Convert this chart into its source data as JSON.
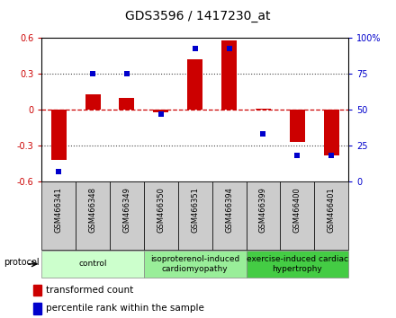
{
  "title": "GDS3596 / 1417230_at",
  "samples": [
    "GSM466341",
    "GSM466348",
    "GSM466349",
    "GSM466350",
    "GSM466351",
    "GSM466394",
    "GSM466399",
    "GSM466400",
    "GSM466401"
  ],
  "bar_values": [
    -0.42,
    0.13,
    0.1,
    -0.02,
    0.42,
    0.58,
    0.01,
    -0.27,
    -0.38
  ],
  "scatter_values": [
    7,
    75,
    75,
    47,
    93,
    93,
    33,
    18,
    18
  ],
  "ylim_left": [
    -0.6,
    0.6
  ],
  "ylim_right": [
    0,
    100
  ],
  "yticks_left": [
    -0.6,
    -0.3,
    0.0,
    0.3,
    0.6
  ],
  "yticks_right": [
    0,
    25,
    50,
    75,
    100
  ],
  "bar_color": "#cc0000",
  "scatter_color": "#0000cc",
  "zero_line_color": "#cc0000",
  "dotted_line_color": "#444444",
  "groups": [
    {
      "label": "control",
      "start": 0,
      "end": 3,
      "color": "#ccffcc"
    },
    {
      "label": "isoproterenol-induced\ncardiomyopathy",
      "start": 3,
      "end": 6,
      "color": "#99ee99"
    },
    {
      "label": "exercise-induced cardiac\nhypertrophy",
      "start": 6,
      "end": 9,
      "color": "#44cc44"
    }
  ],
  "protocol_label": "protocol",
  "legend_bar_label": "transformed count",
  "legend_scatter_label": "percentile rank within the sample",
  "title_fontsize": 10,
  "tick_fontsize": 7,
  "sample_fontsize": 6,
  "group_fontsize": 6.5,
  "legend_fontsize": 7.5,
  "sample_box_color": "#cccccc",
  "fig_width": 4.4,
  "fig_height": 3.54,
  "dpi": 100
}
